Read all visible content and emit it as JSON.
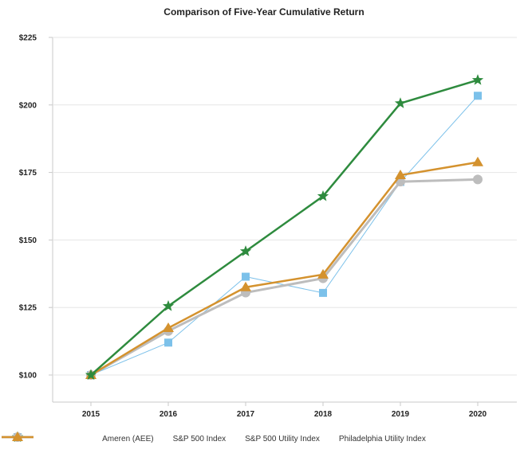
{
  "chart_data": {
    "type": "line",
    "title": "Comparison of Five-Year Cumulative Return",
    "categories": [
      "2015",
      "2016",
      "2017",
      "2018",
      "2019",
      "2020"
    ],
    "y_ticks": [
      "$100",
      "$125",
      "$150",
      "$175",
      "$200",
      "$225"
    ],
    "ylim": [
      100,
      225
    ],
    "grid": true,
    "legend_position": "bottom",
    "series": [
      {
        "name": "Ameren (AEE)",
        "values": [
          100,
          125.5,
          145.8,
          166.2,
          200.6,
          209.2
        ],
        "color": "#2e8b3e",
        "marker": "star",
        "width": 2.5
      },
      {
        "name": "S&P 500 Index",
        "values": [
          100,
          112.0,
          136.4,
          130.4,
          171.5,
          203.4
        ],
        "color": "#7cc1ea",
        "marker": "square",
        "width": 1
      },
      {
        "name": "S&P 500 Utility Index",
        "values": [
          100,
          116.3,
          130.5,
          135.8,
          171.6,
          172.4
        ],
        "color": "#bdbdbd",
        "marker": "circle",
        "width": 3
      },
      {
        "name": "Philadelphia Utility Index",
        "values": [
          100,
          117.4,
          132.5,
          137.2,
          174.0,
          178.8
        ],
        "color": "#d4922e",
        "marker": "triangle",
        "width": 2.5
      }
    ]
  }
}
